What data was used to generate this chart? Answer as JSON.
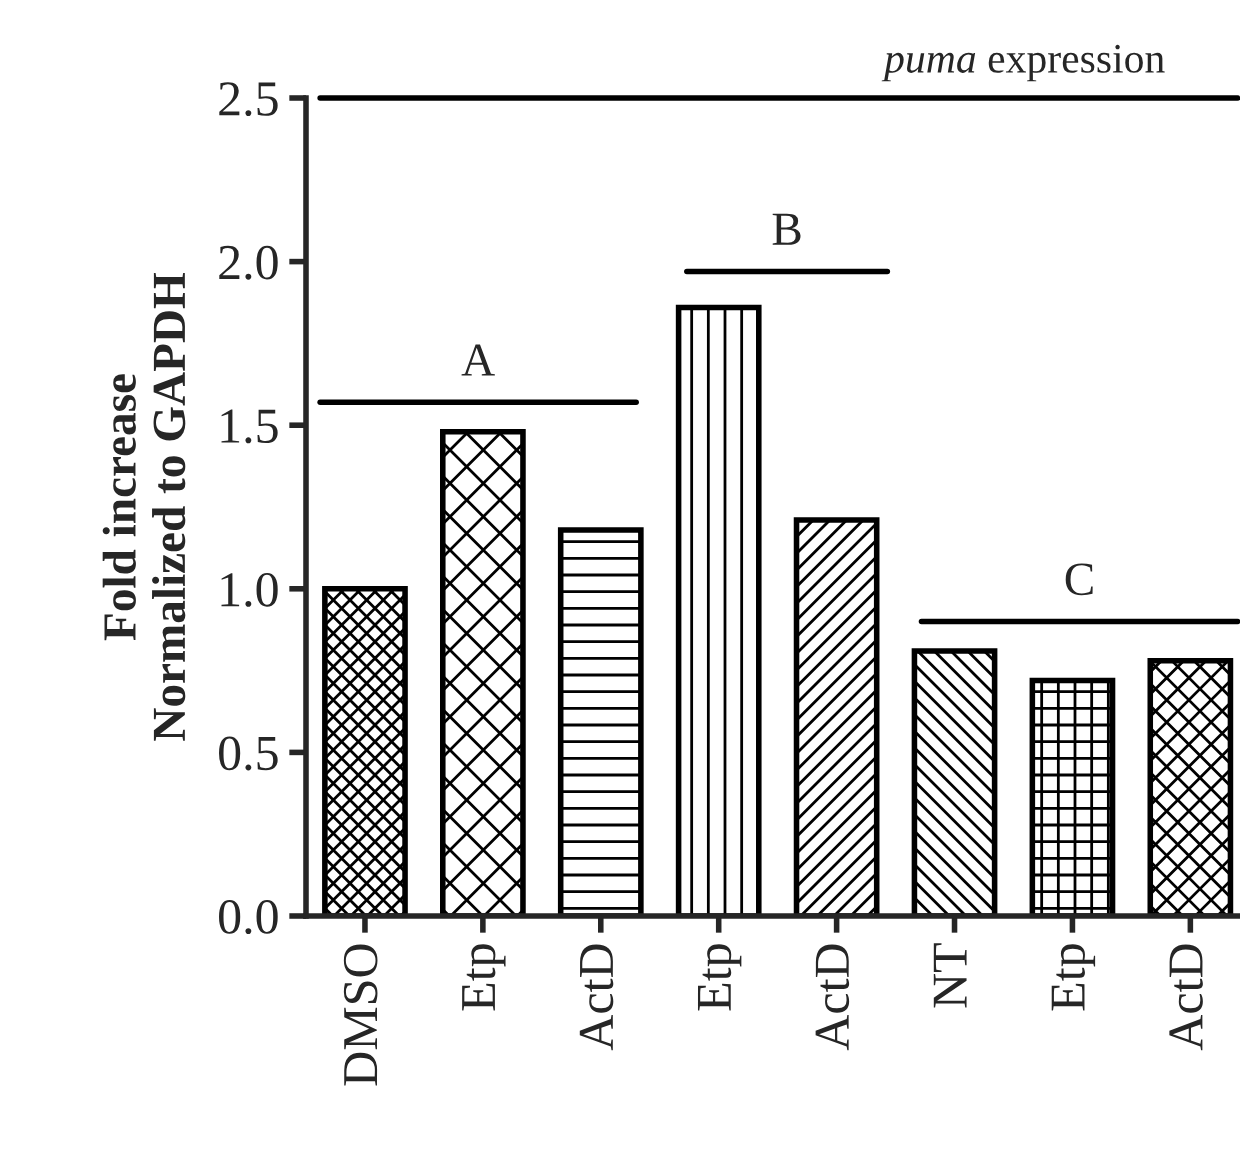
{
  "chart_data": {
    "type": "bar",
    "title": "puma expression",
    "ylabel": "Fold increase\nNormalized to GAPDH",
    "categories": [
      "DMSO",
      "Etp",
      "ActD",
      "Etp",
      "ActD",
      "NT",
      "Etp",
      "ActD"
    ],
    "values": [
      1.0,
      1.48,
      1.18,
      1.86,
      1.21,
      0.81,
      0.72,
      0.78
    ],
    "color": "#000000",
    "ylim": [
      0,
      2.5
    ],
    "yticks": [
      {
        "value": 0,
        "label": "0.0"
      },
      0.5,
      {
        "value": 1,
        "label": "1.0"
      },
      1.5,
      {
        "value": 2,
        "label": "2.0"
      },
      2.5
    ],
    "annotations": [
      "A",
      "B",
      "C"
    ]
  }
}
